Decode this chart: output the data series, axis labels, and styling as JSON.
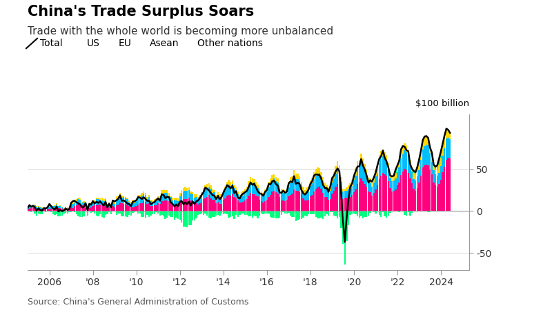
{
  "title": "China's Trade Surplus Soars",
  "subtitle": "Trade with the whole world is becoming more unbalanced",
  "source": "Source: China's General Administration of Customs",
  "ylabel_top": "$100 billion",
  "colors": {
    "us": "#FF007F",
    "eu": "#00BFFF",
    "asean": "#FFD700",
    "other": "#00FF7F",
    "total_line": "#000000",
    "background": "#FFFFFF",
    "grid": "#BBBBBB"
  },
  "ylim": [
    -70,
    115
  ],
  "xlim": [
    2005.0,
    2025.3
  ],
  "yticks": [
    -50,
    0,
    50
  ],
  "xtick_positions": [
    2006,
    2008,
    2010,
    2012,
    2014,
    2016,
    2018,
    2020,
    2022,
    2024
  ],
  "xtick_labels": [
    "2006",
    "'08",
    "'10",
    "'12",
    "'14",
    "'16",
    "'18",
    "'20",
    "'22",
    "2024"
  ],
  "title_fontsize": 15,
  "subtitle_fontsize": 11,
  "legend_fontsize": 10,
  "tick_fontsize": 10,
  "source_fontsize": 9
}
